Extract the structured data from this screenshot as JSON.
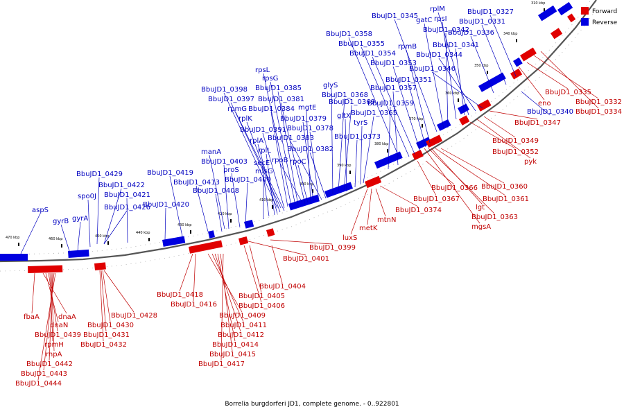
{
  "caption": "Borrelia burgdorferi JD1, complete genome. - 0..922801",
  "legend": {
    "items": [
      {
        "label": "Forward",
        "color": "#e00000"
      },
      {
        "label": "Reverse",
        "color": "#0000e0"
      }
    ]
  },
  "ticks": [
    "310 kbp",
    "340 kbp",
    "350 kbp",
    "360 kbp",
    "370 kbp",
    "380 kbp",
    "390 kbp",
    "400 kbp",
    "410 kbp",
    "420 kbp",
    "430 kbp",
    "440 kbp",
    "450 kbp",
    "460 kbp",
    "470 kbp"
  ],
  "reverse_labels": [
    "aspS",
    "gyrB",
    "gyrA",
    "spo0J",
    "BbuJD1_0426",
    "BbuJD1_0429",
    "BbuJD1_0422",
    "BbuJD1_0421",
    "BbuJD1_0420",
    "BbuJD1_0419",
    "BbuJD1_0413",
    "BbuJD1_0408",
    "manA",
    "BbuJD1_0403",
    "proS",
    "BbuJD1_0400",
    "nusG",
    "secE",
    "rplL",
    "rplA",
    "rplK",
    "rpmG",
    "BbuJD1_0398",
    "BbuJD1_0397",
    "BbuJD1_0391",
    "BbuJD1_0384",
    "rpsL",
    "rpsG",
    "BbuJD1_0385",
    "BbuJD1_0381",
    "mgtE",
    "BbuJD1_0379",
    "BbuJD1_0378",
    "BbuJD1_0383",
    "BbuJD1_0382",
    "rpoB",
    "rpoC",
    "glyS",
    "BbuJD1_0368",
    "BbuJD1_0369",
    "gltX",
    "tyrS",
    "BbuJD1_0365",
    "BbuJD1_0373",
    "BbuJD1_0359",
    "BbuJD1_0357",
    "BbuJD1_0358",
    "BbuJD1_0355",
    "BbuJD1_0354",
    "BbuJD1_0353",
    "BbuJD1_0351",
    "rpmB",
    "BbuJD1_0345",
    "gatC",
    "BbuJD1_0342",
    "rpsI",
    "rplM",
    "BbuJD1_0341",
    "BbuJD1_0344",
    "BbuJD1_0346",
    "BbuJD1_0336",
    "BbuJD1_0331",
    "BbuJD1_0327",
    "BbuJD1_0340"
  ],
  "forward_labels": [
    "fbaA",
    "dnaA",
    "dnaN",
    "BbuJD1_0439",
    "rpmH",
    "rnpA",
    "BbuJD1_0442",
    "BbuJD1_0443",
    "BbuJD1_0444",
    "BbuJD1_0428",
    "BbuJD1_0430",
    "BbuJD1_0431",
    "BbuJD1_0432",
    "BbuJD1_0418",
    "BbuJD1_0416",
    "BbuJD1_0409",
    "BbuJD1_0411",
    "BbuJD1_0412",
    "BbuJD1_0414",
    "BbuJD1_0415",
    "BbuJD1_0417",
    "BbuJD1_0404",
    "BbuJD1_0405",
    "BbuJD1_0406",
    "BbuJD1_0399",
    "BbuJD1_0401",
    "luxS",
    "metK",
    "mtnN",
    "BbuJD1_0374",
    "BbuJD1_0366",
    "BbuJD1_0367",
    "BbuJD1_0360",
    "BbuJD1_0361",
    "lgt",
    "BbuJD1_0363",
    "mgsA",
    "BbuJD1_0352",
    "pyk",
    "BbuJD1_0349",
    "BbuJD1_0347",
    "eno",
    "BbuJD1_0335",
    "BbuJD1_0332",
    "BbuJD1_0334"
  ]
}
